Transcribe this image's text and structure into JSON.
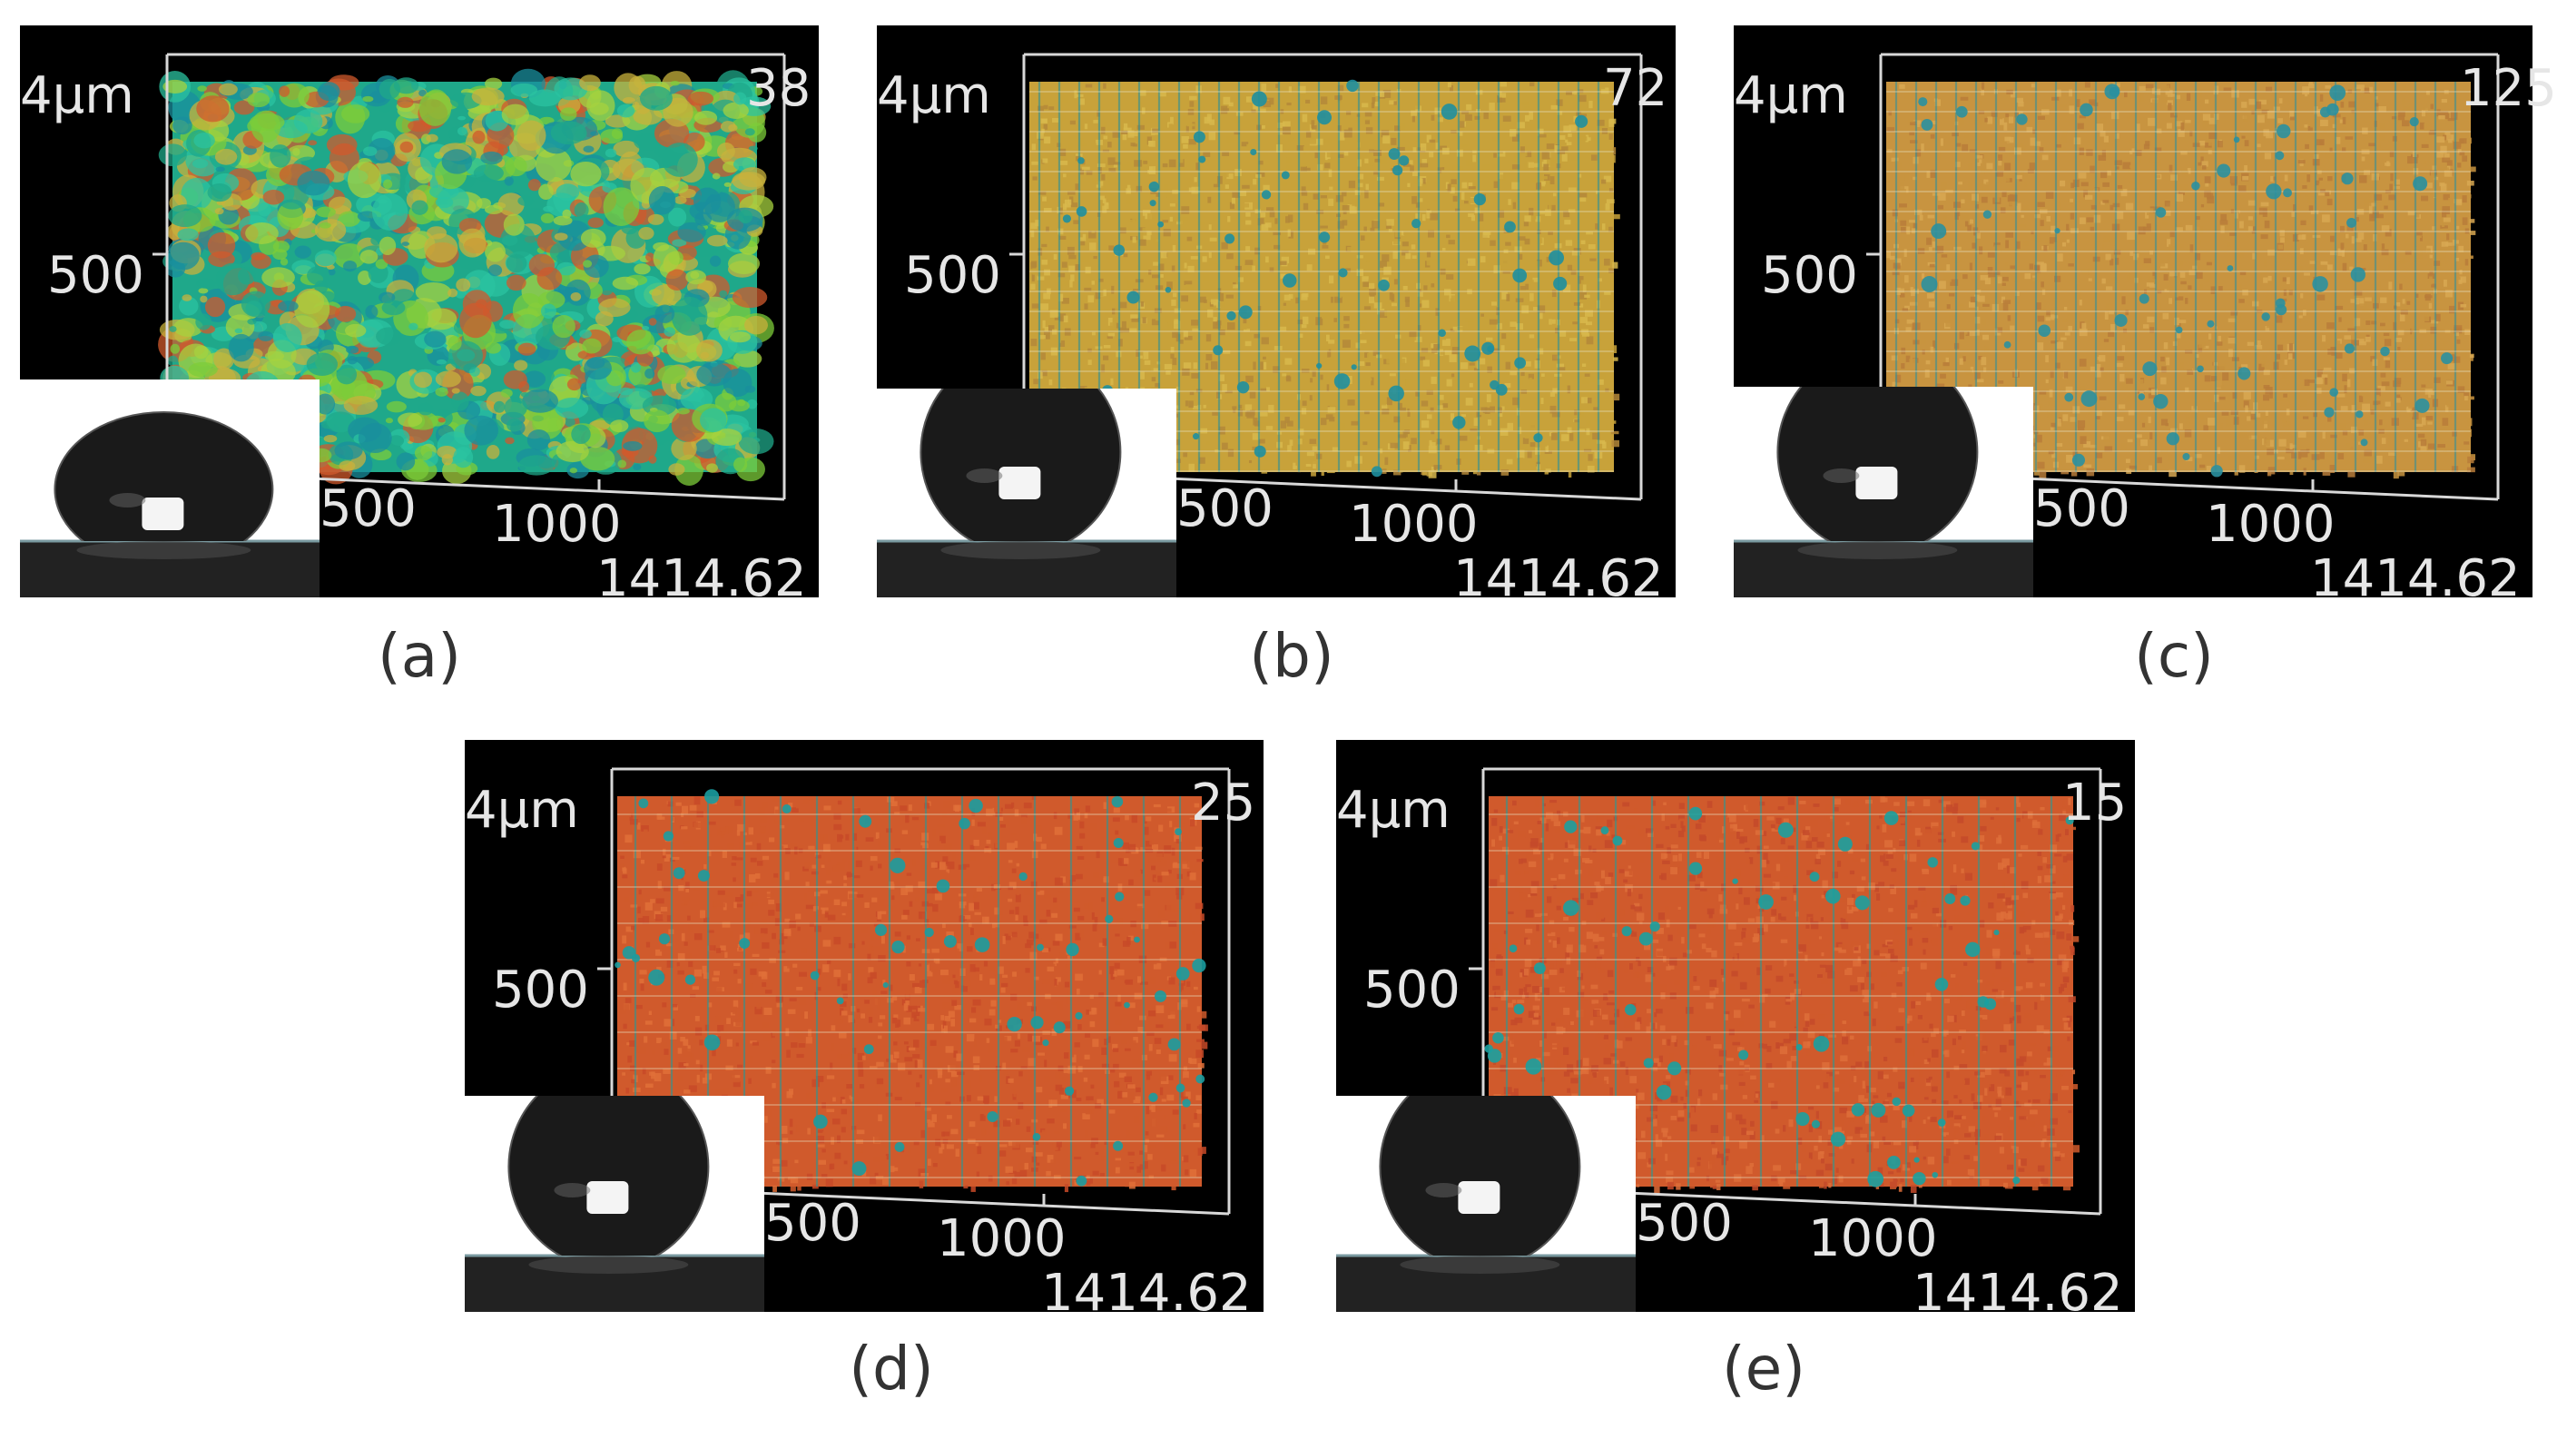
{
  "panels": [
    {
      "id": "a",
      "label": "(a)",
      "texture": "rough",
      "colors": [
        "#1fa88a",
        "#2bc3a0",
        "#7ccc3a",
        "#a6d23f",
        "#c8b23c",
        "#d05a2c",
        "#1a8f9e"
      ],
      "axis": {
        "z_top": "4μm",
        "y_mid": "500",
        "x_1": "500",
        "x_2": "1000",
        "x_end": "1414.62",
        "corner": "38"
      }
    },
    {
      "id": "b",
      "label": "(b)",
      "texture": "fine-grid",
      "colors": [
        "#c8a23a",
        "#d8b84c",
        "#b4883a",
        "#1e8fa0",
        "#6aa84a",
        "#a8b040"
      ],
      "axis": {
        "z_top": "4μm",
        "y_mid": "500",
        "x_1": "500",
        "x_2": "1000",
        "x_end": "1414.62",
        "corner": "72"
      }
    },
    {
      "id": "c",
      "label": "(c)",
      "texture": "fine-grid",
      "colors": [
        "#c89440",
        "#d8a852",
        "#b87c3a",
        "#2a90a0",
        "#a09040",
        "#c06a34"
      ],
      "axis": {
        "z_top": "4μm",
        "y_mid": "500",
        "x_1": "500",
        "x_2": "1000",
        "x_end": "1414.62",
        "corner": "125"
      }
    },
    {
      "id": "d",
      "label": "(d)",
      "texture": "coarse-grid",
      "colors": [
        "#d05a2c",
        "#c84a28",
        "#e07038",
        "#1a9ca0",
        "#86a83a",
        "#c8a03c"
      ],
      "axis": {
        "z_top": "4μm",
        "y_mid": "500",
        "x_1": "500",
        "x_2": "1000",
        "x_end": "1414.62",
        "corner": "25"
      }
    },
    {
      "id": "e",
      "label": "(e)",
      "texture": "coarse-grid",
      "colors": [
        "#d05a2c",
        "#c44a2a",
        "#de6e3a",
        "#1aa0a0",
        "#7aa83c",
        "#c8a23c"
      ],
      "axis": {
        "z_top": "4μm",
        "y_mid": "500",
        "x_1": "500",
        "x_2": "1000",
        "x_end": "1414.62",
        "corner": "15"
      }
    }
  ]
}
